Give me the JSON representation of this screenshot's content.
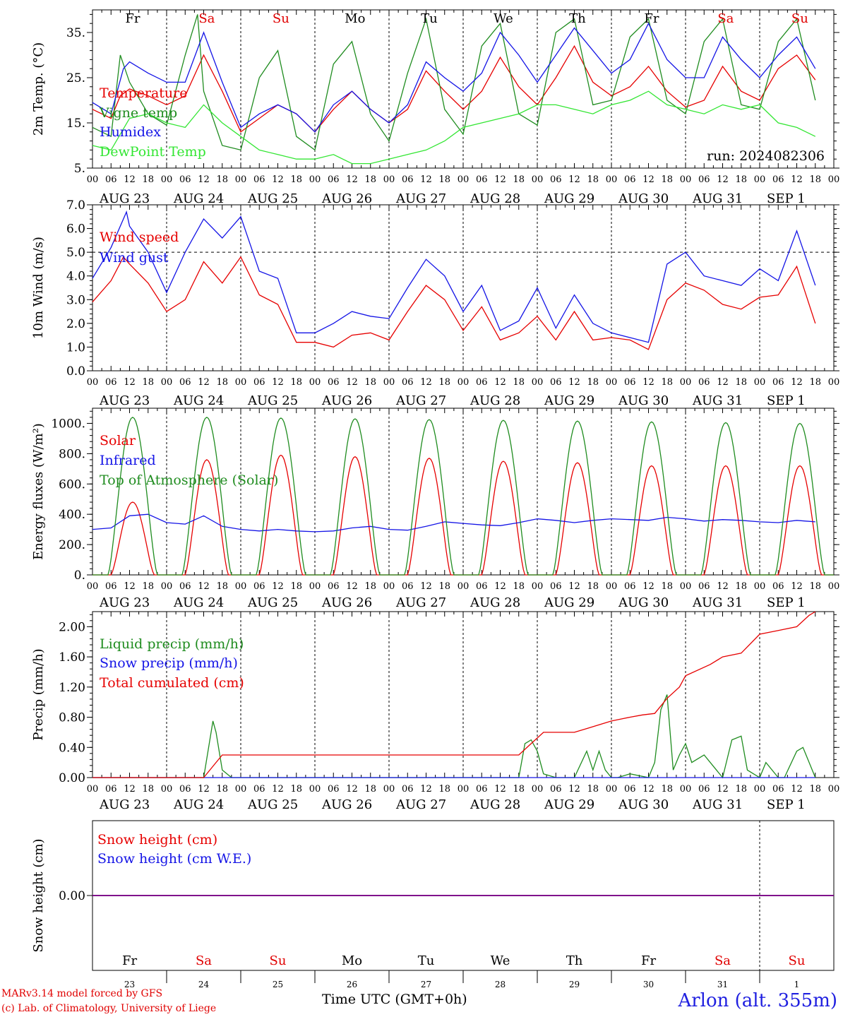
{
  "meta": {
    "model_line": "MARv3.14 model forced by GFS",
    "credit_line": "(c) Lab. of Climatology, University of Liege",
    "station": "Arlon (alt. 355m)",
    "time_axis_label": "Time UTC (GMT+0h)",
    "run_label": "run: 2024082306"
  },
  "time_axis": {
    "hour_labels": [
      "00",
      "06",
      "12",
      "18"
    ],
    "date_labels": [
      "AUG 23",
      "AUG 24",
      "AUG 25",
      "AUG 26",
      "AUG 27",
      "AUG 28",
      "AUG 29",
      "AUG 30",
      "AUG 31",
      "SEP  1"
    ],
    "weekdays": [
      "Fr",
      "Sa",
      "Su",
      "Mo",
      "Tu",
      "We",
      "Th",
      "Fr",
      "Sa",
      "Su"
    ],
    "weekday_colors": [
      "#000000",
      "#e00000",
      "#e00000",
      "#000000",
      "#000000",
      "#000000",
      "#000000",
      "#000000",
      "#e00000",
      "#e00000"
    ],
    "day_numbers": [
      "23",
      "24",
      "25",
      "26",
      "27",
      "28",
      "29",
      "30",
      "31",
      "1"
    ],
    "days": 10
  },
  "colors": {
    "red": "#e60000",
    "green": "#1f8c1f",
    "blue": "#1414e6",
    "light_green": "#33e633",
    "purple": "#800080"
  },
  "chart_data": [
    {
      "type": "line",
      "ylabel": "2m Temp. (°C)",
      "ylim": [
        5,
        40
      ],
      "yticks": [
        5,
        15,
        25,
        35
      ],
      "ytick_labels": [
        "5.",
        "15.",
        "25.",
        "35."
      ],
      "x_unit": "hours since AUG 23 00 UTC",
      "series": [
        {
          "name": "Temperature",
          "color": "#e60000",
          "x": [
            0,
            6,
            9,
            12,
            18,
            24,
            30,
            36,
            42,
            48,
            54,
            60,
            66,
            72,
            78,
            84,
            90,
            96,
            102,
            108,
            114,
            120,
            126,
            132,
            138,
            144,
            150,
            156,
            162,
            168,
            174,
            180,
            186,
            192,
            198,
            204,
            210,
            216,
            222,
            228,
            234
          ],
          "y": [
            18,
            16,
            21,
            22.5,
            21,
            19,
            21,
            30,
            22,
            13,
            16,
            19,
            17,
            13,
            18,
            22,
            18,
            15,
            18,
            26.5,
            22,
            18,
            22,
            29.5,
            23,
            19,
            25,
            32,
            24,
            21,
            23,
            27.5,
            22,
            18.5,
            20,
            27.5,
            22,
            20,
            27,
            30,
            24.5
          ]
        },
        {
          "name": "Vigne temp",
          "color": "#1f8c1f",
          "x": [
            0,
            6,
            9,
            12,
            18,
            24,
            30,
            34,
            36,
            42,
            48,
            54,
            60,
            66,
            72,
            78,
            84,
            90,
            96,
            102,
            108,
            114,
            120,
            126,
            132,
            138,
            144,
            150,
            156,
            162,
            168,
            174,
            180,
            186,
            192,
            198,
            204,
            210,
            216,
            222,
            228,
            234
          ],
          "y": [
            14,
            12,
            30,
            24,
            17,
            14.5,
            30,
            39,
            22,
            10,
            9,
            25,
            31,
            12,
            9,
            28,
            33,
            17,
            11,
            26,
            38,
            18,
            12.5,
            32,
            37,
            17,
            14.5,
            35,
            38,
            19,
            20,
            34,
            38,
            20,
            17,
            33,
            38,
            19,
            18,
            33,
            38,
            20
          ]
        },
        {
          "name": "Humidex",
          "color": "#1414e6",
          "x": [
            0,
            6,
            10,
            12,
            18,
            24,
            30,
            36,
            42,
            48,
            54,
            60,
            66,
            72,
            78,
            84,
            90,
            96,
            102,
            108,
            114,
            120,
            126,
            132,
            138,
            144,
            150,
            156,
            162,
            168,
            174,
            180,
            186,
            192,
            198,
            204,
            210,
            216,
            222,
            228,
            234
          ],
          "y": [
            19.5,
            17,
            27,
            28.5,
            26,
            24,
            24,
            35,
            24,
            14,
            17,
            19,
            17,
            13,
            19,
            22,
            18,
            15,
            19,
            28.5,
            25,
            22,
            26,
            35,
            30,
            24,
            30,
            36,
            31,
            26,
            29,
            37,
            29,
            25,
            25,
            34,
            29,
            25,
            30,
            34,
            27
          ]
        },
        {
          "name": "DewPoint Temp",
          "color": "#33e633",
          "x": [
            0,
            6,
            12,
            18,
            24,
            30,
            36,
            42,
            48,
            54,
            60,
            66,
            72,
            78,
            84,
            90,
            96,
            102,
            108,
            114,
            120,
            126,
            132,
            138,
            144,
            150,
            156,
            162,
            168,
            174,
            180,
            186,
            192,
            198,
            204,
            210,
            216,
            222,
            228,
            234
          ],
          "y": [
            10,
            9,
            16,
            17,
            15,
            14,
            19,
            15,
            12,
            9,
            8,
            7,
            7,
            8,
            6,
            6,
            7,
            8,
            9,
            11,
            14,
            15,
            16,
            17,
            19,
            19,
            18,
            17,
            19,
            20,
            22,
            19,
            18,
            17,
            19,
            18,
            19,
            15,
            14,
            12
          ]
        }
      ]
    },
    {
      "type": "line",
      "ylabel": "10m Wind (m/s)",
      "ylim": [
        0,
        7
      ],
      "yticks": [
        0,
        1,
        2,
        3,
        4,
        5,
        6,
        7
      ],
      "ytick_labels": [
        "0.0",
        "1.0",
        "2.0",
        "3.0",
        "4.0",
        "5.0",
        "6.0",
        "7.0"
      ],
      "reference_line": 5,
      "x_unit": "hours since AUG 23 00 UTC",
      "series": [
        {
          "name": "Wind speed",
          "color": "#e60000",
          "x": [
            0,
            6,
            10,
            12,
            18,
            24,
            30,
            36,
            42,
            48,
            54,
            60,
            66,
            72,
            78,
            84,
            90,
            96,
            102,
            108,
            114,
            120,
            126,
            132,
            138,
            144,
            150,
            156,
            162,
            168,
            174,
            180,
            186,
            192,
            198,
            204,
            210,
            216,
            222,
            228,
            234
          ],
          "y": [
            2.9,
            3.8,
            4.8,
            4.5,
            3.7,
            2.5,
            3.0,
            4.6,
            3.7,
            4.8,
            3.2,
            2.8,
            1.2,
            1.2,
            1.0,
            1.5,
            1.6,
            1.3,
            2.5,
            3.6,
            3.0,
            1.7,
            2.7,
            1.3,
            1.6,
            2.3,
            1.3,
            2.5,
            1.3,
            1.4,
            1.3,
            0.9,
            3.0,
            3.7,
            3.4,
            2.8,
            2.6,
            3.1,
            3.2,
            4.4,
            2.0
          ]
        },
        {
          "name": "Wind gust",
          "color": "#1414e6",
          "x": [
            0,
            6,
            11,
            12,
            18,
            24,
            30,
            36,
            42,
            48,
            54,
            60,
            66,
            72,
            78,
            84,
            90,
            96,
            102,
            108,
            114,
            120,
            126,
            132,
            138,
            144,
            150,
            156,
            162,
            168,
            174,
            180,
            186,
            192,
            198,
            204,
            210,
            216,
            222,
            228,
            234
          ],
          "y": [
            3.9,
            5.2,
            6.7,
            6.1,
            5.0,
            3.3,
            5.0,
            6.4,
            5.6,
            6.5,
            4.2,
            3.9,
            1.6,
            1.6,
            2.0,
            2.5,
            2.3,
            2.2,
            3.5,
            4.7,
            4.0,
            2.5,
            3.6,
            1.7,
            2.1,
            3.5,
            1.8,
            3.2,
            2.0,
            1.6,
            1.4,
            1.2,
            4.5,
            5.0,
            4.0,
            3.8,
            3.6,
            4.3,
            3.8,
            5.9,
            3.6
          ]
        }
      ]
    },
    {
      "type": "line",
      "ylabel": "Energy fluxes (W/m²)",
      "ylim": [
        0,
        1100
      ],
      "yticks": [
        0,
        200,
        400,
        600,
        800,
        1000
      ],
      "ytick_labels": [
        "0.",
        "200.",
        "400.",
        "600.",
        "800.",
        "1000."
      ],
      "x_unit": "hours since AUG 23 00 UTC",
      "series": [
        {
          "name": "Solar",
          "color": "#e60000",
          "model": "daily_bell",
          "peak_hour": 13,
          "half_width_hours": 7,
          "daily_peaks": [
            480,
            760,
            790,
            780,
            770,
            750,
            740,
            720,
            720,
            720
          ]
        },
        {
          "name": "Infrared",
          "color": "#1414e6",
          "x": [
            0,
            6,
            12,
            18,
            24,
            30,
            36,
            42,
            48,
            54,
            60,
            66,
            72,
            78,
            84,
            90,
            96,
            102,
            108,
            114,
            120,
            126,
            132,
            138,
            144,
            150,
            156,
            162,
            168,
            174,
            180,
            186,
            192,
            198,
            204,
            210,
            216,
            222,
            228,
            234
          ],
          "y": [
            300,
            310,
            390,
            400,
            345,
            335,
            390,
            320,
            300,
            290,
            300,
            290,
            285,
            290,
            310,
            320,
            300,
            295,
            320,
            350,
            340,
            330,
            325,
            345,
            370,
            360,
            345,
            360,
            370,
            365,
            360,
            380,
            370,
            355,
            365,
            360,
            350,
            345,
            360,
            350
          ]
        },
        {
          "name": "Top of Atmosphere (Solar)",
          "color": "#1f8c1f",
          "model": "daily_bell",
          "peak_hour": 13,
          "half_width_hours": 8,
          "daily_peaks": [
            1040,
            1040,
            1035,
            1030,
            1025,
            1020,
            1015,
            1010,
            1005,
            1000
          ]
        }
      ]
    },
    {
      "type": "line",
      "ylabel": "Precip (mm/h)",
      "ylim": [
        0,
        2.2
      ],
      "yticks": [
        0,
        0.4,
        0.8,
        1.2,
        1.6,
        2.0
      ],
      "ytick_labels": [
        "0.00",
        "0.40",
        "0.80",
        "1.20",
        "1.60",
        "2.00"
      ],
      "x_unit": "hours since AUG 23 00 UTC",
      "series": [
        {
          "name": "Liquid precip (mm/h)",
          "color": "#1f8c1f",
          "x": [
            0,
            36,
            39,
            40,
            42,
            45,
            48,
            138,
            140,
            142,
            144,
            146,
            150,
            156,
            160,
            162,
            164,
            166,
            168,
            170,
            174,
            180,
            182,
            184,
            186,
            188,
            190,
            192,
            194,
            198,
            204,
            207,
            210,
            212,
            216,
            218,
            222,
            224,
            228,
            230,
            234
          ],
          "y": [
            0,
            0,
            0.75,
            0.6,
            0.1,
            0,
            0,
            0,
            0.45,
            0.5,
            0.35,
            0.05,
            0,
            0,
            0.35,
            0.1,
            0.35,
            0.1,
            0,
            0,
            0.05,
            0,
            0.2,
            0.9,
            1.1,
            0.1,
            0.3,
            0.45,
            0.2,
            0.3,
            0,
            0.5,
            0.55,
            0.1,
            0,
            0.2,
            0,
            0,
            0.35,
            0.4,
            0
          ]
        },
        {
          "name": "Snow precip (mm/h)",
          "color": "#1414e6",
          "x": [
            0,
            234
          ],
          "y": [
            0,
            0
          ]
        },
        {
          "name": "Total cumulated (cm)",
          "color": "#e60000",
          "x": [
            0,
            36,
            40,
            42,
            48,
            100,
            138,
            142,
            146,
            156,
            160,
            164,
            168,
            174,
            178,
            182,
            186,
            190,
            192,
            200,
            204,
            210,
            216,
            222,
            228,
            232,
            234
          ],
          "y": [
            0,
            0,
            0.2,
            0.3,
            0.3,
            0.3,
            0.3,
            0.45,
            0.6,
            0.6,
            0.65,
            0.7,
            0.75,
            0.8,
            0.83,
            0.85,
            1.05,
            1.2,
            1.35,
            1.5,
            1.6,
            1.65,
            1.9,
            1.95,
            2.0,
            2.15,
            2.2
          ]
        }
      ]
    },
    {
      "type": "line",
      "ylabel": "Snow height (cm)",
      "ytick_labels": [
        "0.00"
      ],
      "x_unit": "hours since AUG 23 00 UTC",
      "series": [
        {
          "name": "Snow height (cm)",
          "color": "#e60000",
          "x": [
            0,
            240
          ],
          "y": [
            0,
            0
          ]
        },
        {
          "name": "Snow height (cm W.E.)",
          "color": "#1414e6",
          "x": [
            0,
            240
          ],
          "y": [
            0,
            0
          ]
        }
      ]
    }
  ]
}
